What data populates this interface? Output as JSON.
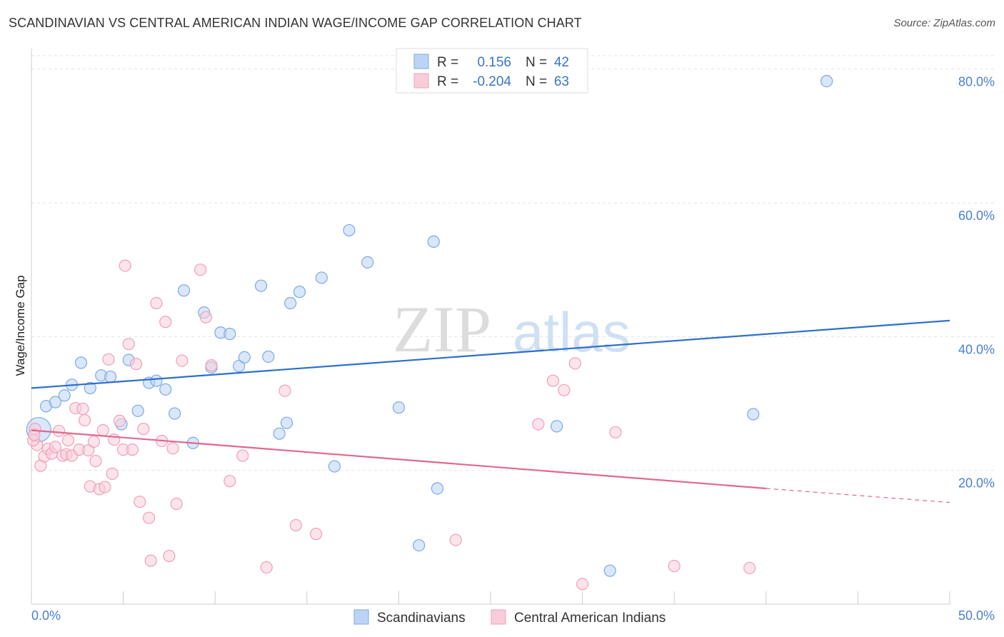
{
  "header": {
    "title": "SCANDINAVIAN VS CENTRAL AMERICAN INDIAN WAGE/INCOME GAP CORRELATION CHART",
    "source": "Source: ZipAtlas.com"
  },
  "watermark": {
    "zip": "ZIP",
    "atlas": "atlas"
  },
  "chart_data": {
    "type": "scatter",
    "title": "SCANDINAVIAN VS CENTRAL AMERICAN INDIAN WAGE/INCOME GAP CORRELATION CHART",
    "xlabel": "",
    "ylabel": "Wage/Income Gap",
    "xlim": [
      0,
      50
    ],
    "ylim": [
      0,
      82
    ],
    "x_tick_labels": {
      "left": "0.0%",
      "right": "50.0%"
    },
    "y_ticks": [
      {
        "value": 20,
        "label": "20.0%"
      },
      {
        "value": 40,
        "label": "40.0%"
      },
      {
        "value": 60,
        "label": "60.0%"
      },
      {
        "value": 80,
        "label": "80.0%"
      }
    ],
    "legend": {
      "rows": [
        {
          "r_label": "R =",
          "r_value": "0.156",
          "n_label": "N =",
          "n_value": "42"
        },
        {
          "r_label": "R =",
          "r_value": "-0.204",
          "n_label": "N =",
          "n_value": "63"
        }
      ]
    },
    "series": [
      {
        "name": "Scandinavians",
        "color": "#7aaae8",
        "fill": "#bcd4f4",
        "line_color": "#2d6fcc",
        "trend": {
          "x0": 0,
          "y0": 32.3,
          "x1": 50,
          "y1": 42.4
        },
        "points": [
          [
            0.4,
            26.1
          ],
          [
            0.8,
            29.6
          ],
          [
            1.3,
            30.2
          ],
          [
            1.8,
            31.2
          ],
          [
            2.2,
            32.8
          ],
          [
            2.7,
            36.1
          ],
          [
            3.2,
            32.3
          ],
          [
            3.8,
            34.2
          ],
          [
            4.3,
            34.0
          ],
          [
            4.9,
            26.9
          ],
          [
            5.3,
            36.5
          ],
          [
            5.8,
            28.9
          ],
          [
            6.4,
            33.1
          ],
          [
            6.8,
            33.4
          ],
          [
            7.3,
            32.1
          ],
          [
            7.8,
            28.5
          ],
          [
            8.3,
            46.9
          ],
          [
            8.8,
            24.1
          ],
          [
            9.4,
            43.6
          ],
          [
            9.8,
            35.4
          ],
          [
            10.3,
            40.6
          ],
          [
            10.8,
            40.4
          ],
          [
            11.3,
            35.6
          ],
          [
            11.6,
            36.9
          ],
          [
            12.5,
            47.6
          ],
          [
            12.9,
            37.0
          ],
          [
            13.5,
            25.5
          ],
          [
            13.9,
            27.1
          ],
          [
            14.1,
            45.0
          ],
          [
            14.6,
            46.7
          ],
          [
            15.8,
            48.8
          ],
          [
            16.5,
            20.6
          ],
          [
            17.3,
            55.9
          ],
          [
            18.3,
            51.1
          ],
          [
            20.0,
            29.4
          ],
          [
            21.1,
            8.8
          ],
          [
            21.9,
            54.2
          ],
          [
            22.1,
            17.3
          ],
          [
            28.6,
            26.6
          ],
          [
            31.5,
            5.0
          ],
          [
            39.3,
            28.4
          ],
          [
            43.3,
            78.2
          ]
        ]
      },
      {
        "name": "Central American Indians",
        "color": "#f0a0b8",
        "fill": "#f8cdd9",
        "line_color": "#e0688f",
        "trend": {
          "x0": 0,
          "y0": 26.0,
          "x1": 40,
          "y1": 17.3
        },
        "trend_dashed": {
          "x0": 40,
          "y0": 17.3,
          "x1": 50,
          "y1": 15.2
        },
        "points": [
          [
            0.2,
            26.2
          ],
          [
            0.3,
            23.8
          ],
          [
            0.5,
            20.7
          ],
          [
            0.7,
            22.1
          ],
          [
            0.9,
            23.2
          ],
          [
            1.1,
            22.5
          ],
          [
            1.3,
            23.5
          ],
          [
            1.5,
            25.9
          ],
          [
            1.7,
            22.2
          ],
          [
            1.9,
            22.4
          ],
          [
            2.0,
            24.5
          ],
          [
            2.2,
            22.2
          ],
          [
            2.4,
            29.3
          ],
          [
            2.6,
            23.1
          ],
          [
            2.8,
            29.2
          ],
          [
            2.9,
            27.5
          ],
          [
            3.1,
            23.0
          ],
          [
            3.2,
            17.6
          ],
          [
            3.4,
            24.3
          ],
          [
            3.5,
            21.4
          ],
          [
            3.7,
            17.2
          ],
          [
            3.9,
            26.0
          ],
          [
            4.0,
            17.5
          ],
          [
            4.2,
            36.6
          ],
          [
            4.4,
            19.5
          ],
          [
            4.5,
            24.6
          ],
          [
            4.8,
            27.4
          ],
          [
            5.0,
            23.1
          ],
          [
            5.1,
            50.6
          ],
          [
            5.3,
            38.9
          ],
          [
            5.5,
            23.1
          ],
          [
            5.7,
            35.9
          ],
          [
            5.9,
            15.3
          ],
          [
            6.1,
            26.2
          ],
          [
            6.4,
            12.9
          ],
          [
            6.5,
            6.5
          ],
          [
            6.8,
            45.0
          ],
          [
            7.1,
            24.4
          ],
          [
            7.3,
            42.2
          ],
          [
            7.5,
            7.2
          ],
          [
            7.7,
            23.3
          ],
          [
            7.9,
            15.0
          ],
          [
            8.2,
            36.4
          ],
          [
            9.2,
            50.0
          ],
          [
            9.5,
            42.9
          ],
          [
            9.8,
            35.7
          ],
          [
            10.8,
            18.4
          ],
          [
            11.5,
            22.2
          ],
          [
            12.8,
            5.5
          ],
          [
            13.8,
            31.9
          ],
          [
            14.4,
            11.8
          ],
          [
            15.5,
            10.5
          ],
          [
            23.1,
            9.6
          ],
          [
            27.6,
            26.9
          ],
          [
            28.4,
            33.4
          ],
          [
            29.0,
            32.0
          ],
          [
            29.6,
            36.0
          ],
          [
            30.0,
            3.0
          ],
          [
            31.8,
            25.7
          ],
          [
            35.0,
            5.7
          ],
          [
            39.1,
            5.4
          ],
          [
            0.1,
            24.5
          ],
          [
            0.15,
            25.3
          ]
        ]
      }
    ]
  }
}
